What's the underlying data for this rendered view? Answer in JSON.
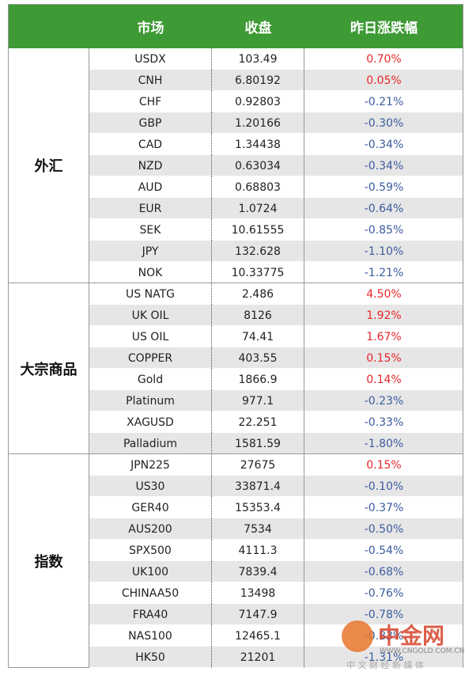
{
  "header": [
    "市场",
    "收盘",
    "昨日涨跌幅"
  ],
  "groups": [
    {
      "name": "外汇",
      "rows": [
        [
          "USDX",
          "103.49",
          "0.70%"
        ],
        [
          "CNH",
          "6.80192",
          "0.05%"
        ],
        [
          "CHF",
          "0.92803",
          "-0.21%"
        ],
        [
          "GBP",
          "1.20166",
          "-0.30%"
        ],
        [
          "CAD",
          "1.34438",
          "-0.34%"
        ],
        [
          "NZD",
          "0.63034",
          "-0.34%"
        ],
        [
          "AUD",
          "0.68803",
          "-0.59%"
        ],
        [
          "EUR",
          "1.0724",
          "-0.64%"
        ],
        [
          "SEK",
          "10.61555",
          "-0.85%"
        ],
        [
          "JPY",
          "132.628",
          "-1.10%"
        ],
        [
          "NOK",
          "10.33775",
          "-1.21%"
        ]
      ]
    },
    {
      "name": "大宗商品",
      "rows": [
        [
          "US NATG",
          "2.486",
          "4.50%"
        ],
        [
          "UK OIL",
          "8126",
          "1.92%"
        ],
        [
          "US OIL",
          "74.41",
          "1.67%"
        ],
        [
          "COPPER",
          "403.55",
          "0.15%"
        ],
        [
          "Gold",
          "1866.9",
          "0.14%"
        ],
        [
          "Platinum",
          "977.1",
          "-0.23%"
        ],
        [
          "XAGUSD",
          "22.251",
          "-0.33%"
        ],
        [
          "Palladium",
          "1581.59",
          "-1.80%"
        ]
      ]
    },
    {
      "name": "指数",
      "rows": [
        [
          "JPN225",
          "27675",
          "0.15%"
        ],
        [
          "US30",
          "33871.4",
          "-0.10%"
        ],
        [
          "GER40",
          "15353.4",
          "-0.37%"
        ],
        [
          "AUS200",
          "7534",
          "-0.50%"
        ],
        [
          "SPX500",
          "4111.3",
          "-0.54%"
        ],
        [
          "UK100",
          "7839.4",
          "-0.68%"
        ],
        [
          "CHINAA50",
          "13498",
          "-0.76%"
        ],
        [
          "FRA40",
          "7147.9",
          "-0.78%"
        ],
        [
          "NAS100",
          "12465.1",
          "-0.83%"
        ],
        [
          "HK50",
          "21201",
          "-1.31%"
        ]
      ]
    }
  ],
  "colors": {
    "up": "#e8262b",
    "down": "#3b5c9e",
    "header": "#3e9a35"
  },
  "watermark": {
    "logo": "中金网",
    "url": "WWW.CNGOLD.COM.CN",
    "slogan": "中 文 财 经 新 媒 体"
  }
}
